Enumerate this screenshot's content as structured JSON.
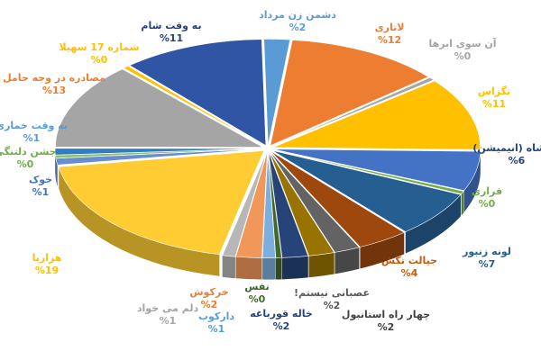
{
  "chart_data": {
    "type": "pie",
    "style": "3d-exploded",
    "categories": [
      "دشمن زن مرداد",
      "لاتاری",
      "آن سوی ابرها",
      "تگزاس",
      "فیلشاه (انیمیشن)",
      "فراری",
      "لونه زنبور",
      "جیالت تکش",
      "عصبانی نیستم!",
      "چهار راه استانبول",
      "خاله قورباغه",
      "نفس",
      "دارکوب",
      "خرکوش",
      "دلم می خواد",
      "هزارپا",
      "خوک",
      "جشن دلتنگی",
      "به وقت خماری",
      "مصادره در وجه حامل",
      "شماره 17 سهیلا",
      "به وقت شام"
    ],
    "values": [
      2,
      12,
      0,
      11,
      6,
      0,
      7,
      4,
      2,
      2,
      2,
      0,
      1,
      2,
      1,
      19,
      1,
      0,
      1,
      13,
      0,
      11
    ],
    "value_labels": [
      "%2",
      "%12",
      "%0",
      "%11",
      "%6",
      "%0",
      "%7",
      "%4",
      "%2",
      "%2",
      "%2",
      "%0",
      "%1",
      "%2",
      "%1",
      "%19",
      "%1",
      "%0",
      "%1",
      "%13",
      "%0",
      "%11"
    ],
    "colors": [
      "#5b9bd5",
      "#ed7d31",
      "#a5a5a5",
      "#ffc000",
      "#4472c4",
      "#70ad47",
      "#255e91",
      "#9e480e",
      "#636363",
      "#997300",
      "#264478",
      "#43682b",
      "#7cafdd",
      "#f1975a",
      "#b7b7b7",
      "#ffcd33",
      "#698ed0",
      "#8cc168",
      "#327dc2",
      "#a5a5a5",
      "#ffc000",
      "#2f55a4"
    ],
    "label_colors": [
      "#5b9bd5",
      "#ed7d31",
      "#a5a5a5",
      "#ffc000",
      "#264478",
      "#70ad47",
      "#255e91",
      "#c55a11",
      "#595959",
      "#404040",
      "#264478",
      "#43682b",
      "#5b9bd5",
      "#ed7d31",
      "#a5a5a5",
      "#ffc000",
      "#4472c4",
      "#70ad47",
      "#5b9bd5",
      "#ed7d31",
      "#ffc000",
      "#264478"
    ],
    "title": "",
    "legend": "none"
  }
}
